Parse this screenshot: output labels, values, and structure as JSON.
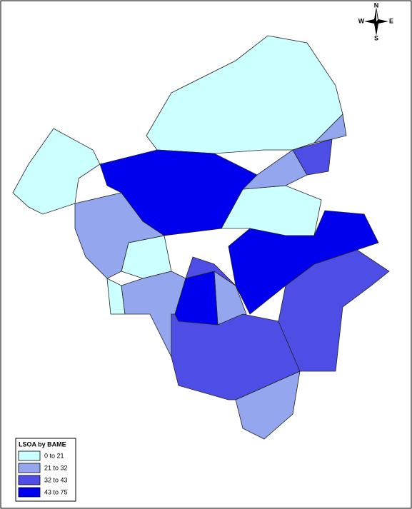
{
  "compass": {
    "north": "N",
    "east": "E",
    "south": "S",
    "west": "W"
  },
  "legend": {
    "title": "LSOA by BAME",
    "classes": [
      {
        "label": "0  to 21",
        "color": "#ccffff"
      },
      {
        "label": "21  to 32",
        "color": "#94a6ee"
      },
      {
        "label": "32  to 43",
        "color": "#4e4ee6"
      },
      {
        "label": "43  to 75",
        "color": "#0000ee"
      }
    ]
  }
}
